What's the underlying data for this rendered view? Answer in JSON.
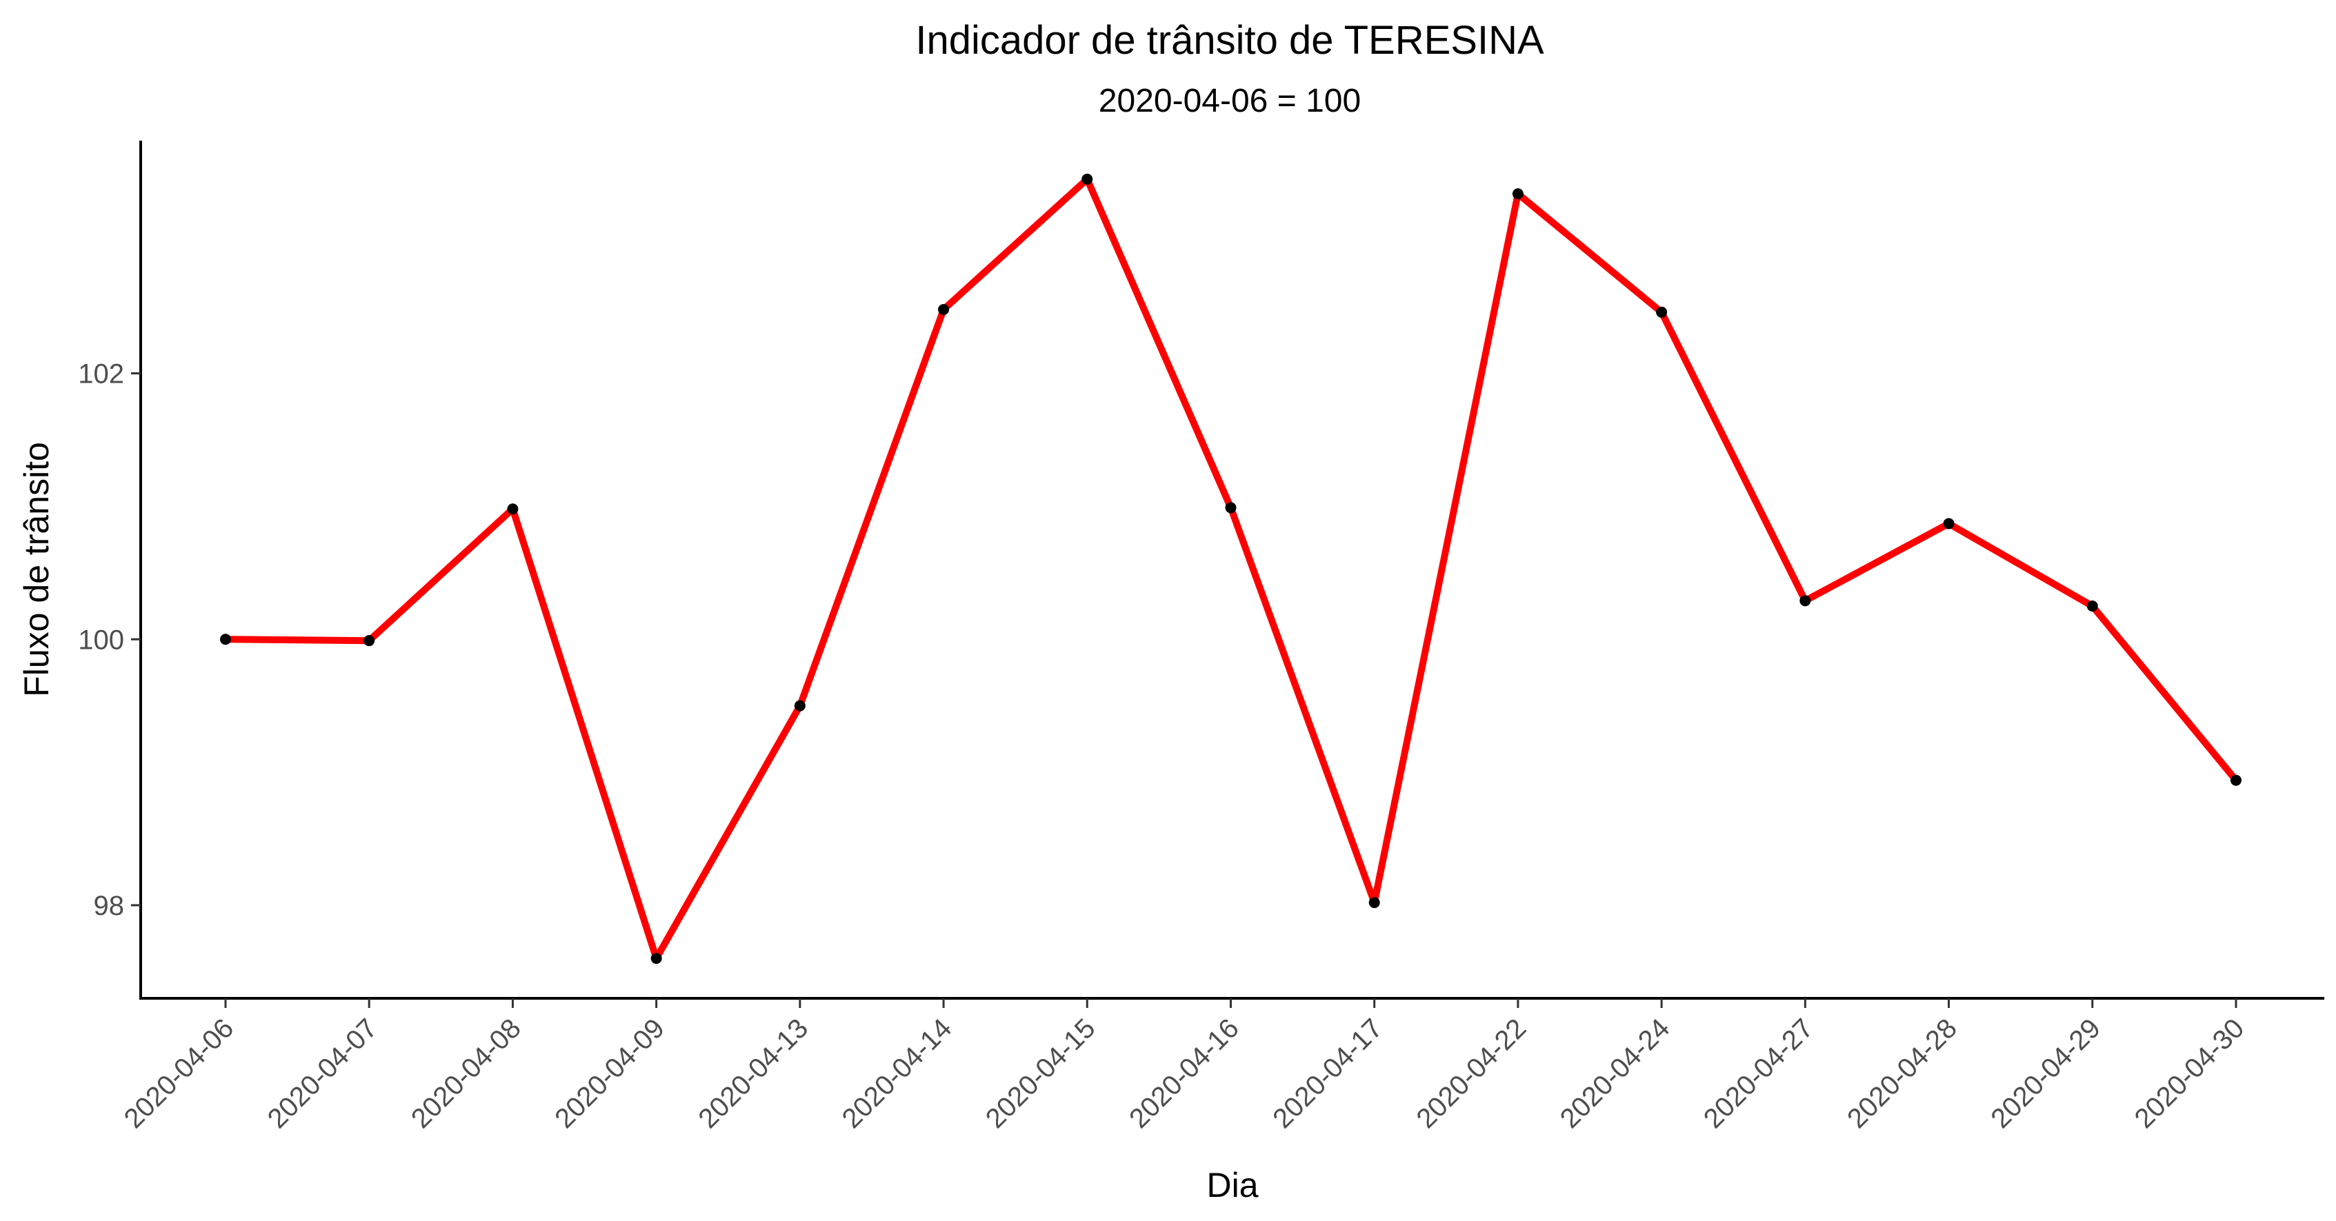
{
  "chart_data": {
    "type": "line",
    "title": "Indicador de trânsito de TERESINA",
    "subtitle": "2020-04-06 = 100",
    "xlabel": "Dia",
    "ylabel": "Fluxo de trânsito",
    "categories": [
      "2020-04-06",
      "2020-04-07",
      "2020-04-08",
      "2020-04-09",
      "2020-04-13",
      "2020-04-14",
      "2020-04-15",
      "2020-04-16",
      "2020-04-17",
      "2020-04-22",
      "2020-04-24",
      "2020-04-27",
      "2020-04-28",
      "2020-04-29",
      "2020-04-30"
    ],
    "series": [
      {
        "values": [
          100.0,
          99.99,
          100.98,
          97.6,
          99.5,
          102.48,
          103.46,
          100.99,
          98.02,
          103.35,
          102.46,
          100.29,
          100.87,
          100.25,
          98.94
        ]
      }
    ],
    "y_ticks": [
      98,
      100,
      102
    ],
    "ylim": [
      97.3,
      103.75
    ],
    "grid": false,
    "legend": "none",
    "colors": {
      "line": "#ff0000",
      "point": "#000000",
      "axis": "#000000",
      "tick_text": "#4d4d4d"
    }
  }
}
